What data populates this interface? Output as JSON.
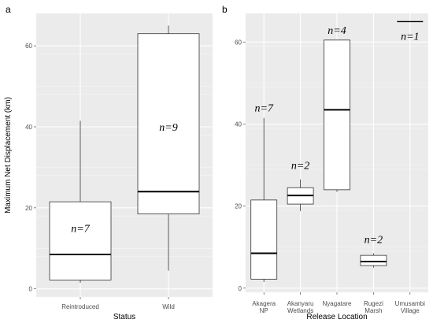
{
  "chart_data": [
    {
      "panel": "a",
      "type": "box",
      "xlabel": "Status",
      "ylabel": "Maximum Net Displacement (km)",
      "ylim": [
        -2,
        68
      ],
      "yticks": [
        0,
        20,
        40,
        60
      ],
      "grid": true,
      "categories": [
        {
          "label": "Reintroduced",
          "min": 1.5,
          "q1": 2.2,
          "median": 8.5,
          "q3": 21.5,
          "max": 41.5,
          "n_label": "n=7"
        },
        {
          "label": "Wild",
          "min": 4.5,
          "q1": 18.5,
          "median": 24.0,
          "q3": 63.0,
          "max": 65.0,
          "n_label": "n=9"
        }
      ]
    },
    {
      "panel": "b",
      "type": "box",
      "xlabel": "Release Location",
      "ylabel": "",
      "ylim": [
        -1,
        67
      ],
      "yticks": [
        0,
        20,
        40,
        60
      ],
      "grid": true,
      "categories": [
        {
          "label": [
            "Akagera",
            "NP"
          ],
          "min": 1.5,
          "q1": 2.2,
          "median": 8.5,
          "q3": 21.5,
          "max": 41.5,
          "n_label": "n=7"
        },
        {
          "label": [
            "Akanyaru",
            "Wetlands"
          ],
          "min": 18.8,
          "q1": 20.5,
          "median": 22.6,
          "q3": 24.5,
          "max": 26.5,
          "n_label": "n=2"
        },
        {
          "label": [
            "Nyagatare"
          ],
          "min": 23.5,
          "q1": 24.0,
          "median": 43.5,
          "q3": 60.5,
          "max": 60.5,
          "n_label": "n=4"
        },
        {
          "label": [
            "Rugezi",
            "Marsh"
          ],
          "min": 5.0,
          "q1": 5.5,
          "median": 6.5,
          "q3": 8.0,
          "max": 8.5,
          "n_label": "n=2"
        },
        {
          "label": [
            "Umusambi",
            "Village"
          ],
          "min": 65.0,
          "q1": 65.0,
          "median": 65.0,
          "q3": 65.0,
          "max": 65.0,
          "n_label": "n=1"
        }
      ]
    }
  ]
}
